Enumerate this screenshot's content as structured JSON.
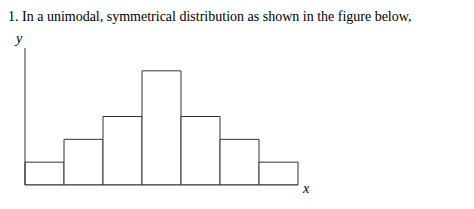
{
  "chart_data": {
    "type": "bar",
    "title": "1.  In a unimodal, symmetrical distribution as shown in the figure below,",
    "categories": [
      null,
      null,
      null,
      null,
      null,
      null,
      null
    ],
    "values": [
      1,
      2,
      3,
      5,
      3,
      2,
      1
    ],
    "color": "white",
    "xlabel": "x",
    "ylabel": "y",
    "ylim": [
      0,
      6
    ],
    "grid": false,
    "tick_labels": false
  }
}
